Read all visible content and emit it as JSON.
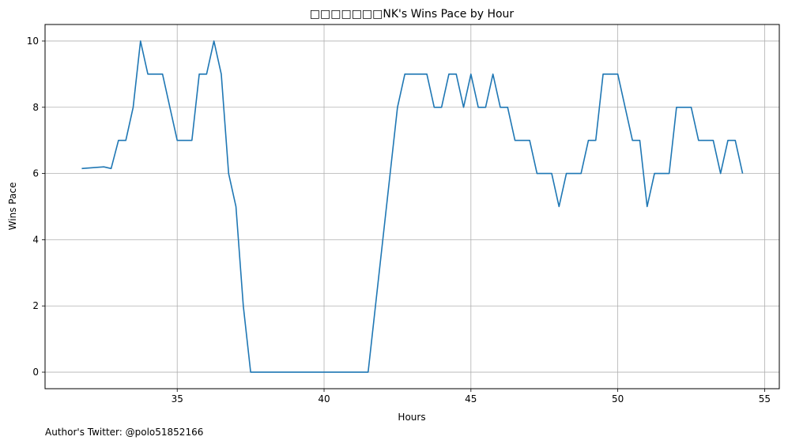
{
  "chart_data": {
    "type": "line",
    "title": "□□□□□□□NK's Wins Pace by Hour",
    "xlabel": "Hours",
    "ylabel": "Wins Pace",
    "xlim": [
      30.5,
      55.5
    ],
    "ylim": [
      -0.5,
      10.5
    ],
    "xticks": [
      35,
      40,
      45,
      50,
      55
    ],
    "yticks": [
      0,
      2,
      4,
      6,
      8,
      10
    ],
    "grid": true,
    "line_color": "#1f77b4",
    "series": [
      {
        "x": [
          31.75,
          32.5,
          32.75,
          33.0,
          33.25,
          33.5,
          33.75,
          34.0,
          34.25,
          34.5,
          34.75,
          35.0,
          35.25,
          35.5,
          35.75,
          36.0,
          36.25,
          36.5,
          36.75,
          37.0,
          37.25,
          37.5,
          37.75,
          41.5,
          41.75,
          42.0,
          42.25,
          42.5,
          42.75,
          43.0,
          43.25,
          43.5,
          43.75,
          44.0,
          44.25,
          44.5,
          44.75,
          45.0,
          45.25,
          45.5,
          45.75,
          46.0,
          46.25,
          46.5,
          46.75,
          47.0,
          47.25,
          47.5,
          47.75,
          48.0,
          48.25,
          48.5,
          48.75,
          49.0,
          49.25,
          49.5,
          49.75,
          50.0,
          50.25,
          50.5,
          50.75,
          51.0,
          51.25,
          51.5,
          51.75,
          52.0,
          52.25,
          52.5,
          52.75,
          53.0,
          53.25,
          53.5,
          53.75,
          54.0,
          54.25
        ],
        "y": [
          6.15,
          6.2,
          6.15,
          7,
          7,
          8,
          10,
          9,
          9,
          9,
          8,
          7,
          7,
          7,
          9,
          9,
          10,
          9,
          6,
          5,
          2,
          0,
          0,
          0,
          2,
          4,
          6,
          8,
          9,
          9,
          9,
          9,
          8,
          8,
          9,
          9,
          8,
          9,
          8,
          8,
          9,
          8,
          8,
          7,
          7,
          7,
          6,
          6,
          6,
          5,
          6,
          6,
          6,
          7,
          7,
          9,
          9,
          9,
          8,
          7,
          7,
          5,
          6,
          6,
          6,
          8,
          8,
          8,
          7,
          7,
          7,
          6,
          7,
          7,
          6
        ]
      }
    ]
  },
  "footer": {
    "text": "Author's Twitter: @polo51852166"
  }
}
